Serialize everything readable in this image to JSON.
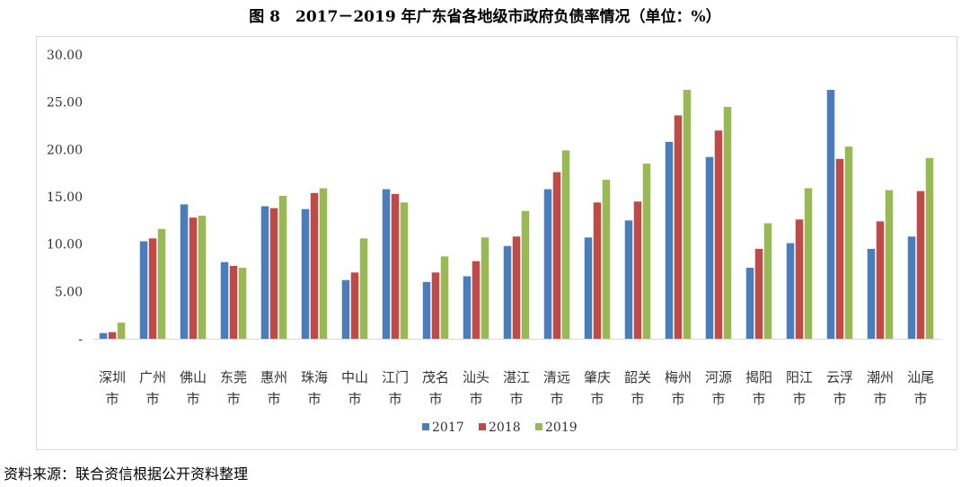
{
  "title": "图 8　2017－2019 年广东省各地级市政府负债率情况（单位：%）",
  "source": "资料来源：联合资信根据公开资料整理",
  "chart_data": {
    "type": "bar",
    "title": "图 8　2017－2019 年广东省各地级市政府负债率情况（单位：%）",
    "xlabel": "",
    "ylabel": "",
    "ylim": [
      0,
      30
    ],
    "yticks": [
      0,
      5,
      10,
      15,
      20,
      25,
      30
    ],
    "ytick_labels": [
      "-",
      "5.00",
      "10.00",
      "15.00",
      "20.00",
      "25.00",
      "30.00"
    ],
    "grid": false,
    "legend_position": "bottom",
    "categories": [
      "深圳市",
      "广州市",
      "佛山市",
      "东莞市",
      "惠州市",
      "珠海市",
      "中山市",
      "江门市",
      "茂名市",
      "汕头市",
      "湛江市",
      "清远市",
      "肇庆市",
      "韶关市",
      "梅州市",
      "河源市",
      "揭阳市",
      "阳江市",
      "云浮市",
      "潮州市",
      "汕尾市"
    ],
    "series": [
      {
        "name": "2017",
        "color": "#4a7ebb",
        "values": [
          0.6,
          10.3,
          14.2,
          8.1,
          14.0,
          13.7,
          6.2,
          15.8,
          6.0,
          6.6,
          9.8,
          15.8,
          10.7,
          12.5,
          20.8,
          19.2,
          7.5,
          10.1,
          26.3,
          9.5,
          10.8
        ]
      },
      {
        "name": "2018",
        "color": "#be4b48",
        "values": [
          0.7,
          10.6,
          12.8,
          7.7,
          13.8,
          15.4,
          7.0,
          15.3,
          7.0,
          8.2,
          10.8,
          17.6,
          14.4,
          14.5,
          23.6,
          22.0,
          9.5,
          12.6,
          19.0,
          12.4,
          15.6
        ]
      },
      {
        "name": "2019",
        "color": "#98b954",
        "values": [
          1.7,
          11.6,
          13.0,
          7.5,
          15.1,
          15.9,
          10.6,
          14.4,
          8.7,
          10.7,
          13.5,
          19.9,
          16.8,
          18.5,
          26.3,
          24.5,
          12.2,
          15.9,
          20.3,
          15.7,
          19.1
        ]
      }
    ]
  }
}
